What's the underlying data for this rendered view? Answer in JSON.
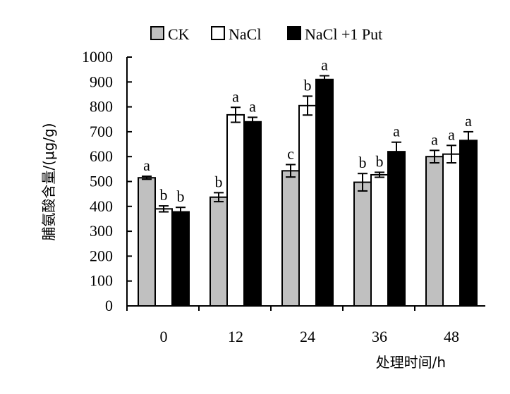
{
  "chart_data": {
    "type": "bar",
    "title": "",
    "xlabel": "处理时间/h",
    "ylabel": "脯氨酸含量/(μg/g)",
    "ylim": [
      0,
      1000
    ],
    "yticks": [
      "0",
      "100",
      "200",
      "300",
      "400",
      "500",
      "600",
      "700",
      "800",
      "900",
      "1000"
    ],
    "categories": [
      "0",
      "12",
      "24",
      "36",
      "48"
    ],
    "legend_position": "top",
    "grid": false,
    "series": [
      {
        "name": "CK",
        "color": "#c0c0c0",
        "values": [
          515,
          437,
          543,
          497,
          600
        ],
        "errors": [
          6,
          18,
          25,
          35,
          25
        ],
        "letters": [
          "a",
          "b",
          "c",
          "b",
          "a"
        ]
      },
      {
        "name": "NaCl",
        "color": "#ffffff",
        "values": [
          390,
          768,
          805,
          527,
          610
        ],
        "errors": [
          12,
          30,
          38,
          10,
          35
        ],
        "letters": [
          "b",
          "a",
          "b",
          "b",
          "a"
        ]
      },
      {
        "name": "NaCl +1 Put",
        "color": "#000000",
        "values": [
          378,
          740,
          910,
          620,
          665
        ],
        "errors": [
          18,
          18,
          15,
          38,
          35
        ],
        "letters": [
          "b",
          "a",
          "a",
          "a",
          "a"
        ]
      }
    ]
  }
}
